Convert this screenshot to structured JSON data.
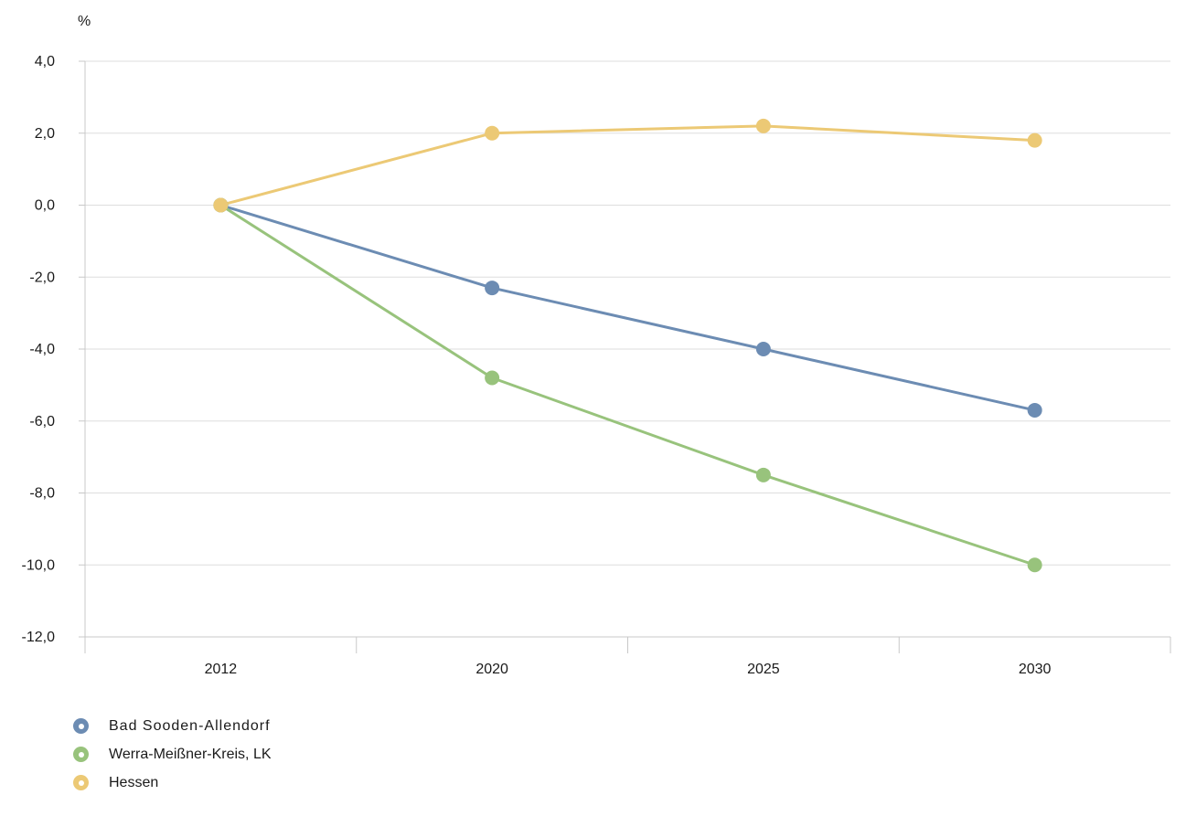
{
  "chart_data": {
    "type": "line",
    "unit_label": "%",
    "categories": [
      "2012",
      "2020",
      "2025",
      "2030"
    ],
    "ylim": [
      -12,
      4
    ],
    "yticks": [
      4,
      2,
      0,
      -2,
      -4,
      -6,
      -8,
      -10,
      -12
    ],
    "ytick_labels": [
      "4,0",
      "2,0",
      "0,0",
      "-2,0",
      "-4,0",
      "-6,0",
      "-8,0",
      "-10,0",
      "-12,0"
    ],
    "grid": true,
    "legend_position": "bottom-left",
    "series": [
      {
        "name": "Bad Sooden-Allendorf",
        "color": "#6c8cb3",
        "values": [
          0,
          -2.3,
          -4.0,
          -5.7
        ]
      },
      {
        "name": "Werra-Meißner-Kreis, LK",
        "color": "#98c37c",
        "values": [
          0,
          -4.8,
          -7.5,
          -10.0
        ]
      },
      {
        "name": "Hessen",
        "color": "#ecc975",
        "values": [
          0,
          2.0,
          2.2,
          1.8
        ]
      }
    ]
  }
}
